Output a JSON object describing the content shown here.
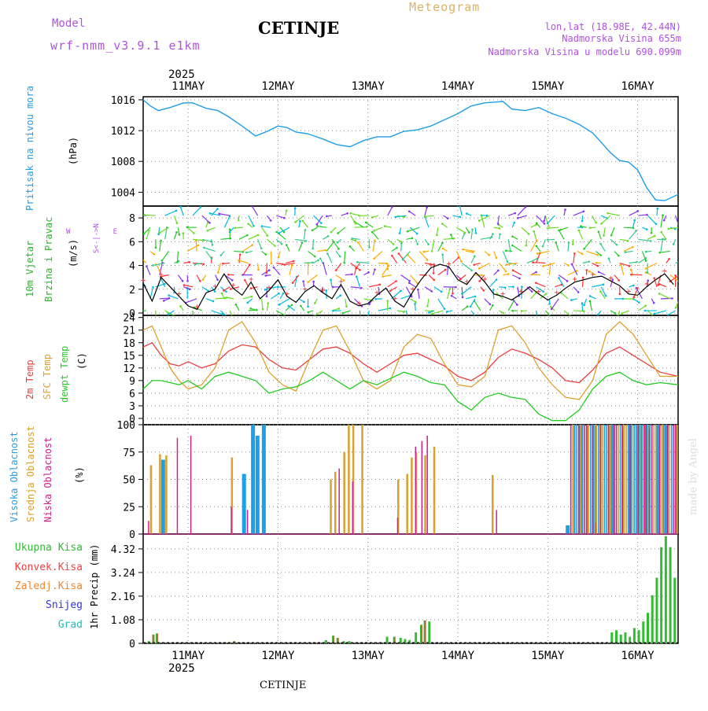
{
  "header": {
    "model_label": "Model",
    "model_name": "wrf-nmm_v3.9.1 e1km",
    "city": "CETINJE",
    "meteogram": "Meteogram",
    "lonlat": "lon,lat (18.98E, 42.44N)",
    "altitude": "Nadmorska Visina 655m",
    "model_altitude": "Nadmorska Visina u modelu 690.099m",
    "year": "2025",
    "footer_city": "CETINJE",
    "watermark": "made by Angel"
  },
  "colors": {
    "pressure": "#1e9ee6",
    "wind_title": "#22bb22",
    "temp2m": "#e84040",
    "sfc_temp": "#e0a030",
    "dewpt": "#22cc22",
    "high_cloud": "#1ea0e6",
    "mid_cloud": "#d9a030",
    "low_cloud": "#cc2288",
    "total_precip": "#33bb33",
    "convective": "#ee4444",
    "freezing": "#ee8833",
    "snow": "#3333dd",
    "hail": "#22bbbb",
    "grid": "#888888"
  },
  "chart_data": [
    {
      "type": "line",
      "panel": "pressure",
      "title": "Pritisak na nivou mora",
      "ylabel": "(hPa)",
      "x_days": [
        "11MAY",
        "12MAY",
        "13MAY",
        "14MAY",
        "15MAY",
        "16MAY"
      ],
      "x_range_days": [
        -0.5,
        5.45
      ],
      "yticks": [
        "1016",
        "1012",
        "1008",
        "1004"
      ],
      "ylim": [
        1002.2,
        1016.4
      ],
      "series": [
        {
          "x": [
            -0.5,
            -0.42,
            -0.33,
            -0.2,
            -0.05,
            0.05,
            0.2,
            0.33,
            0.45,
            0.6,
            0.75,
            0.88,
            1.0,
            1.1,
            1.2,
            1.33,
            1.5,
            1.65,
            1.8,
            1.95,
            2.1,
            2.25,
            2.4,
            2.55,
            2.7,
            2.85,
            3.0,
            3.15,
            3.3,
            3.4,
            3.5,
            3.6,
            3.75,
            3.9,
            4.05,
            4.2,
            4.35,
            4.5,
            4.6,
            4.7,
            4.8,
            4.9,
            5.0,
            5.1,
            5.2,
            5.3,
            5.45
          ],
          "y": [
            1016,
            1015.2,
            1014.6,
            1015,
            1015.6,
            1015.6,
            1014.9,
            1014.6,
            1013.8,
            1012.6,
            1011.3,
            1011.9,
            1012.6,
            1012.4,
            1011.8,
            1011.6,
            1010.9,
            1010.2,
            1009.9,
            1010.7,
            1011.2,
            1011.2,
            1011.9,
            1012.1,
            1012.6,
            1013.4,
            1014.2,
            1015.2,
            1015.6,
            1015.7,
            1015.8,
            1014.8,
            1014.6,
            1015.0,
            1014.2,
            1013.6,
            1012.8,
            1011.7,
            1010.4,
            1009.1,
            1008.1,
            1007.9,
            1006.9,
            1004.6,
            1003.0,
            1002.9,
            1003.7
          ]
        }
      ]
    },
    {
      "type": "line",
      "panel": "wind",
      "title": "10m Vjetar Brzina i Pravac",
      "ylabel": "(m/s)",
      "compass": "N / S / W / E",
      "yticks": [
        "0",
        "2",
        "4",
        "6",
        "8"
      ],
      "ylim": [
        -0.2,
        9.0
      ],
      "series": [
        {
          "x": [
            -0.5,
            -0.4,
            -0.3,
            -0.2,
            -0.1,
            0,
            0.1,
            0.2,
            0.3,
            0.4,
            0.5,
            0.6,
            0.7,
            0.8,
            0.9,
            1.0,
            1.1,
            1.2,
            1.3,
            1.4,
            1.5,
            1.6,
            1.7,
            1.8,
            1.9,
            2.0,
            2.1,
            2.2,
            2.3,
            2.4,
            2.5,
            2.6,
            2.7,
            2.8,
            2.9,
            3.0,
            3.1,
            3.2,
            3.3,
            3.4,
            3.5,
            3.6,
            3.7,
            3.8,
            3.9,
            4.0,
            4.1,
            4.2,
            4.3,
            4.4,
            4.5,
            4.6,
            4.7,
            4.8,
            4.9,
            5.0,
            5.1,
            5.2,
            5.3,
            5.4
          ],
          "y": [
            2.5,
            1.0,
            3.0,
            2.2,
            1.4,
            0.6,
            0.3,
            1.7,
            2.0,
            3.3,
            2.1,
            1.5,
            2.6,
            1.2,
            1.9,
            2.8,
            1.4,
            0.9,
            1.8,
            2.3,
            1.7,
            1.2,
            2.4,
            1.0,
            0.6,
            0.8,
            1.5,
            2.1,
            1.0,
            0.5,
            1.8,
            2.9,
            3.8,
            4.1,
            3.9,
            2.8,
            2.4,
            3.4,
            2.6,
            1.6,
            1.4,
            1.1,
            1.6,
            2.2,
            1.6,
            1.1,
            1.5,
            2.1,
            2.6,
            2.8,
            3.0,
            3.1,
            2.7,
            2.3,
            1.6,
            1.5,
            2.2,
            2.8,
            3.3,
            2.4
          ]
        }
      ]
    },
    {
      "type": "line",
      "panel": "temperature",
      "legend": [
        "2m Temp",
        "SFC Temp",
        "dewpt Temp"
      ],
      "ylabel": "(C)",
      "yticks": [
        "0",
        "3",
        "6",
        "9",
        "12",
        "15",
        "18",
        "21",
        "24"
      ],
      "ylim": [
        -1.5,
        24.5
      ],
      "series": [
        {
          "name": "2m Temp",
          "x": [
            -0.5,
            -0.4,
            -0.3,
            -0.2,
            -0.1,
            0,
            0.15,
            0.3,
            0.45,
            0.6,
            0.75,
            0.9,
            1.05,
            1.2,
            1.35,
            1.5,
            1.65,
            1.8,
            1.95,
            2.1,
            2.25,
            2.4,
            2.55,
            2.7,
            2.85,
            3.0,
            3.15,
            3.3,
            3.45,
            3.6,
            3.75,
            3.9,
            4.05,
            4.2,
            4.35,
            4.5,
            4.65,
            4.8,
            4.95,
            5.1,
            5.25,
            5.45
          ],
          "y": [
            17,
            18,
            15,
            13,
            12.5,
            13.5,
            12,
            13,
            16,
            17.5,
            17,
            14,
            12,
            11.5,
            14,
            16.5,
            17,
            15.5,
            13,
            11,
            13,
            15,
            15.5,
            14,
            12.5,
            10,
            9,
            11,
            14.5,
            16.5,
            15.5,
            14,
            12,
            9,
            8.5,
            11.5,
            15.5,
            17,
            15,
            13,
            11,
            10
          ]
        },
        {
          "name": "SFC Temp",
          "x": [
            -0.5,
            -0.4,
            -0.3,
            -0.2,
            -0.1,
            0,
            0.15,
            0.3,
            0.45,
            0.6,
            0.75,
            0.9,
            1.05,
            1.2,
            1.35,
            1.5,
            1.65,
            1.8,
            1.95,
            2.1,
            2.25,
            2.4,
            2.55,
            2.7,
            2.85,
            3.0,
            3.15,
            3.3,
            3.45,
            3.6,
            3.75,
            3.9,
            4.05,
            4.2,
            4.35,
            4.5,
            4.65,
            4.8,
            4.95,
            5.1,
            5.25,
            5.45
          ],
          "y": [
            21,
            22,
            17,
            12,
            9,
            7,
            8,
            12,
            21,
            23,
            18,
            11,
            8,
            6.5,
            14,
            21,
            22,
            16,
            9,
            7,
            9,
            17,
            20,
            19,
            13,
            8,
            7.5,
            10,
            21,
            22,
            18,
            12,
            8,
            5,
            4.5,
            9,
            20,
            23,
            20,
            15,
            10,
            10
          ]
        },
        {
          "name": "dewpt Temp",
          "x": [
            -0.5,
            -0.4,
            -0.3,
            -0.2,
            -0.1,
            0,
            0.15,
            0.3,
            0.45,
            0.6,
            0.75,
            0.9,
            1.05,
            1.2,
            1.35,
            1.5,
            1.65,
            1.8,
            1.95,
            2.1,
            2.25,
            2.4,
            2.55,
            2.7,
            2.85,
            3.0,
            3.15,
            3.3,
            3.45,
            3.6,
            3.75,
            3.9,
            4.05,
            4.2,
            4.35,
            4.5,
            4.65,
            4.8,
            4.95,
            5.1,
            5.25,
            5.45
          ],
          "y": [
            7,
            9,
            9,
            8.5,
            8,
            9,
            7,
            10,
            11,
            10,
            9,
            6,
            7,
            7.5,
            9,
            11,
            9,
            7,
            9,
            8,
            9.5,
            11,
            10,
            8.5,
            8,
            4,
            2,
            5,
            6,
            5,
            4.5,
            1,
            -0.5,
            -0.5,
            2,
            7,
            10,
            11,
            9,
            8,
            8.5,
            8
          ]
        }
      ]
    },
    {
      "type": "bar",
      "panel": "cloud",
      "legend": [
        "Visoka Oblacnost",
        "Srednja Oblacnost",
        "Niska Oblacnost"
      ],
      "ylabel": "(%)",
      "yticks": [
        "0",
        "25",
        "50",
        "75",
        "100"
      ],
      "ylim": [
        0,
        100
      ],
      "series": [
        {
          "name": "Visoka Oblacnost",
          "x": [
            -0.3,
            0.6,
            0.7,
            0.75,
            0.82,
            4.2,
            4.35,
            4.5,
            4.7,
            4.9,
            5.0,
            5.1,
            5.2,
            5.3
          ],
          "values": [
            68,
            55,
            100,
            90,
            100,
            8,
            100,
            100,
            100,
            100,
            100,
            100,
            100,
            100
          ]
        },
        {
          "name": "Srednja Oblacnost",
          "x": [
            -0.45,
            -0.35,
            -0.28,
            0.45,
            1.55,
            1.6,
            1.7,
            1.75,
            1.8,
            1.9,
            2.3,
            2.4,
            2.45,
            2.5,
            2.6,
            2.7,
            3.35,
            4.25,
            4.4,
            4.55,
            4.65,
            4.8,
            4.95,
            5.05,
            5.25,
            5.4
          ],
          "values": [
            63,
            73,
            72,
            70,
            50,
            57,
            75,
            100,
            100,
            100,
            50,
            55,
            70,
            75,
            72,
            80,
            54,
            100,
            100,
            100,
            100,
            100,
            100,
            100,
            100,
            100
          ]
        },
        {
          "name": "Niska Oblacnost",
          "x": [
            -0.42,
            -0.1,
            0.05,
            0.5,
            0.68,
            1.7,
            1.85,
            2.35,
            2.55,
            2.62,
            2.68,
            3.45,
            4.55,
            4.85,
            5.15
          ],
          "values": [
            12,
            88,
            90,
            25,
            22,
            60,
            48,
            15,
            80,
            85,
            90,
            22,
            10,
            95,
            95
          ]
        }
      ]
    },
    {
      "type": "bar",
      "panel": "precipitation",
      "legend": [
        "Ukupna Kisa",
        "Konvek.Kisa",
        "Zaledj.Kisa",
        "Snijeg",
        "Grad"
      ],
      "ylabel": "1hr Precip (mm)",
      "yticks": [
        "0",
        "1.08",
        "2.16",
        "3.24",
        "4.32"
      ],
      "ylim": [
        0,
        5.0
      ],
      "series": [
        {
          "name": "Ukupna Kisa",
          "x": [
            -0.45,
            -0.4,
            -0.36,
            0.5,
            1.52,
            1.6,
            1.65,
            1.72,
            1.78,
            2.2,
            2.28,
            2.35,
            2.4,
            2.45,
            2.52,
            2.58,
            2.62,
            2.67,
            4.7,
            4.75,
            4.8,
            4.85,
            4.9,
            4.95,
            5.0,
            5.05,
            5.1,
            5.15,
            5.2,
            5.25,
            5.3,
            5.35,
            5.4
          ],
          "values": [
            0.1,
            0.4,
            0.45,
            0.1,
            0.15,
            0.35,
            0.25,
            0.1,
            0.1,
            0.3,
            0.3,
            0.25,
            0.2,
            0.15,
            0.5,
            0.85,
            1.05,
            1.0,
            0.5,
            0.6,
            0.4,
            0.5,
            0.3,
            0.7,
            0.6,
            1.0,
            1.4,
            2.2,
            3.0,
            4.4,
            4.9,
            4.4,
            3.0
          ]
        },
        {
          "name": "Konvek.Kisa",
          "x": [
            -0.4,
            -0.36,
            0.5,
            1.6,
            1.65,
            2.28,
            2.58,
            2.62
          ],
          "values": [
            0.4,
            0.45,
            0.1,
            0.35,
            0.25,
            0.3,
            0.85,
            1.05
          ]
        }
      ]
    }
  ]
}
